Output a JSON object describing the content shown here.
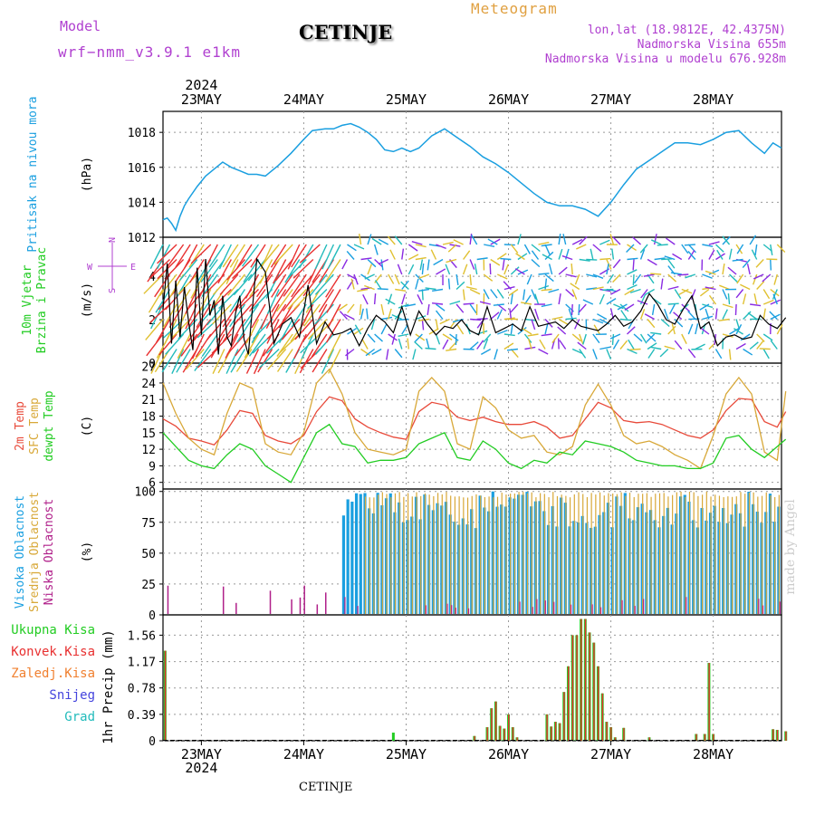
{
  "header": {
    "model_label": "Model",
    "model_name": "wrf−nmm_v3.9.1  e1km",
    "station": "CETINJE",
    "meteogram": "Meteogram",
    "lonlat": "lon,lat (18.9812E, 42.4375N)",
    "elevation": "Nadmorska Visina 655m",
    "model_elevation": "Nadmorska Visina u modelu 676.928m",
    "footer_station": "CETINJE",
    "watermark": "made by Angel"
  },
  "colors": {
    "pressure": "#1a9fe0",
    "wind_speed": "#000000",
    "gust": "#e83030",
    "t2m": "#e84a3a",
    "sfc": "#d8a838",
    "dewpt": "#22cc22",
    "high_cloud": "#1a9fe0",
    "mid_cloud": "#d8a838",
    "low_cloud": "#b0208a",
    "total_precip": "#22cc22",
    "convective": "#e83030",
    "frozen": "#f08030",
    "snow": "#4444dd",
    "graupel": "#22bbbb",
    "label_magenta": "#b040d0",
    "label_orange": "#e0a040"
  },
  "chart_data": {
    "type": "line",
    "time_axis": {
      "year_label": "2024",
      "day_labels": [
        "23MAY",
        "24MAY",
        "25MAY",
        "26MAY",
        "27MAY",
        "28MAY"
      ],
      "start": "2024-05-22 15:00",
      "end": "2024-05-28 16:00"
    },
    "panels": [
      {
        "id": "pressure",
        "ylabel_lines": [
          "Pritisak na nivou mora"
        ],
        "unit": "(hPa)",
        "yticks": [
          1012,
          1014,
          1016,
          1018
        ],
        "ylim": [
          1012,
          1019.2
        ],
        "series": [
          {
            "color_key": "pressure",
            "x": [
              0,
              1,
              2,
              3,
              4,
              5,
              6,
              8,
              10,
              12,
              14,
              16,
              18,
              20,
              22,
              24,
              27,
              30,
              33,
              35,
              38,
              40,
              42,
              44,
              46,
              48,
              50,
              52,
              54,
              56,
              58,
              60,
              63,
              66,
              69,
              72,
              75,
              78,
              81,
              84,
              87,
              90,
              93,
              96,
              99,
              102,
              105,
              108,
              111,
              114,
              117,
              120,
              123,
              126,
              129,
              132,
              135,
              138,
              141,
              143,
              145
            ],
            "y": [
              1013.0,
              1013.1,
              1012.8,
              1012.4,
              1013.2,
              1013.8,
              1014.2,
              1014.9,
              1015.5,
              1015.9,
              1016.3,
              1016.0,
              1015.8,
              1015.6,
              1015.6,
              1015.5,
              1016.1,
              1016.8,
              1017.6,
              1018.1,
              1018.2,
              1018.2,
              1018.4,
              1018.5,
              1018.3,
              1018.0,
              1017.6,
              1017.0,
              1016.9,
              1017.1,
              1016.9,
              1017.1,
              1017.8,
              1018.2,
              1017.7,
              1017.2,
              1016.6,
              1016.2,
              1015.7,
              1015.1,
              1014.5,
              1014.0,
              1013.8,
              1013.8,
              1013.6,
              1013.2,
              1014.0,
              1015.0,
              1015.9,
              1016.4,
              1016.9,
              1017.4,
              1017.4,
              1017.3,
              1017.6,
              1018.0,
              1018.1,
              1017.4,
              1016.8,
              1017.4,
              1017.1
            ]
          }
        ]
      },
      {
        "id": "wind",
        "ylabel_lines": [
          "10m Vjetar",
          "Brzina i Pravac"
        ],
        "unit": "(m/s)",
        "compass": {
          "n": "N",
          "s": "S",
          "w": "W",
          "e": "E"
        },
        "yticks": [
          0,
          2,
          4
        ],
        "ylim": [
          0,
          5.8
        ],
        "series": [
          {
            "color_key": "wind_speed",
            "x": [
              0,
              1,
              2,
              3,
              4,
              5,
              6,
              7,
              8,
              9,
              10,
              11,
              12,
              13,
              14,
              15,
              16,
              17,
              18,
              19,
              20,
              22,
              24,
              26,
              28,
              30,
              32,
              34,
              36,
              38,
              40,
              42,
              44,
              46,
              48,
              50,
              52,
              54,
              56,
              58,
              60,
              62,
              64,
              66,
              68,
              70,
              72,
              74,
              76,
              78,
              80,
              82,
              84,
              86,
              88,
              90,
              92,
              94,
              96,
              98,
              100,
              102,
              104,
              106,
              108,
              110,
              112,
              114,
              116,
              118,
              120,
              122,
              124,
              126,
              128,
              130,
              132,
              134,
              136,
              138,
              140,
              142,
              144,
              146
            ],
            "y": [
              2.5,
              4.6,
              0.9,
              3.8,
              1.2,
              3.5,
              1.9,
              0.6,
              4.4,
              1.3,
              4.8,
              2.2,
              2.9,
              0.4,
              3.1,
              1.2,
              0.8,
              2.3,
              3.1,
              1.1,
              0.4,
              4.8,
              4.2,
              0.9,
              1.8,
              2.1,
              1.2,
              3.6,
              0.9,
              1.9,
              1.3,
              1.4,
              1.6,
              0.8,
              1.6,
              2.2,
              1.9,
              1.4,
              2.6,
              1.3,
              2.4,
              1.8,
              1.3,
              1.7,
              1.6,
              2.0,
              1.5,
              1.3,
              2.6,
              1.4,
              1.6,
              1.8,
              1.5,
              2.6,
              1.7,
              1.8,
              1.9,
              1.6,
              2.0,
              1.7,
              1.6,
              1.5,
              1.8,
              2.2,
              1.7,
              1.9,
              2.4,
              3.2,
              2.7,
              2.0,
              1.8,
              2.5,
              3.1,
              1.6,
              1.9,
              0.8,
              1.2,
              1.3,
              1.1,
              1.2,
              2.2,
              1.8,
              1.6,
              2.1
            ]
          }
        ]
      },
      {
        "id": "temp",
        "ylabel_lines": [
          "2m Temp",
          "SFC Temp",
          "dewpt Temp"
        ],
        "unit": "(C)",
        "yticks": [
          6,
          9,
          12,
          15,
          18,
          21,
          24,
          27
        ],
        "ylim": [
          4.8,
          27.6
        ],
        "series": [
          {
            "color_key": "t2m",
            "x": [
              0,
              3,
              6,
              9,
              12,
              15,
              18,
              21,
              24,
              27,
              30,
              33,
              36,
              39,
              42,
              45,
              48,
              51,
              54,
              57,
              60,
              63,
              66,
              69,
              72,
              75,
              78,
              81,
              84,
              87,
              90,
              93,
              96,
              99,
              102,
              105,
              108,
              111,
              114,
              117,
              120,
              123,
              126,
              129,
              132,
              135,
              138,
              141,
              144,
              146
            ],
            "y": [
              17.5,
              16.2,
              14.0,
              13.5,
              12.8,
              15.5,
              19.0,
              18.5,
              14.5,
              13.5,
              13.0,
              14.5,
              18.8,
              21.5,
              20.8,
              17.5,
              16.0,
              15.0,
              14.2,
              13.8,
              18.8,
              20.5,
              20.0,
              17.8,
              17.2,
              17.8,
              17.0,
              16.5,
              16.5,
              17.0,
              16.0,
              14.0,
              14.5,
              17.5,
              20.5,
              19.5,
              17.2,
              16.8,
              17.0,
              16.5,
              15.5,
              14.5,
              14.0,
              15.5,
              19.0,
              21.2,
              21.0,
              17.0,
              16.0,
              18.8
            ]
          },
          {
            "color_key": "sfc",
            "x": [
              0,
              3,
              6,
              9,
              12,
              15,
              18,
              21,
              24,
              27,
              30,
              33,
              36,
              39,
              42,
              45,
              48,
              51,
              54,
              57,
              60,
              63,
              66,
              69,
              72,
              75,
              78,
              81,
              84,
              87,
              90,
              93,
              96,
              99,
              102,
              105,
              108,
              111,
              114,
              117,
              120,
              123,
              126,
              129,
              132,
              135,
              138,
              141,
              144,
              146
            ],
            "y": [
              24.0,
              18.5,
              14.0,
              12.0,
              11.0,
              18.5,
              24.0,
              23.0,
              13.0,
              11.5,
              11.0,
              15.0,
              24.0,
              26.5,
              22.0,
              15.0,
              12.0,
              11.5,
              11.0,
              12.0,
              22.5,
              25.0,
              22.5,
              13.0,
              12.0,
              21.5,
              19.5,
              15.5,
              14.0,
              14.5,
              11.5,
              11.0,
              12.5,
              20.0,
              23.8,
              20.0,
              14.5,
              13.0,
              13.5,
              12.5,
              11.0,
              10.0,
              8.5,
              14.5,
              22.0,
              25.0,
              22.0,
              11.5,
              10.0,
              22.5
            ]
          },
          {
            "color_key": "dewpt",
            "x": [
              0,
              3,
              6,
              9,
              12,
              15,
              18,
              21,
              24,
              27,
              30,
              33,
              36,
              39,
              42,
              45,
              48,
              51,
              54,
              57,
              60,
              63,
              66,
              69,
              72,
              75,
              78,
              81,
              84,
              87,
              90,
              93,
              96,
              99,
              102,
              105,
              108,
              111,
              114,
              117,
              120,
              123,
              126,
              129,
              132,
              135,
              138,
              141,
              144,
              146
            ],
            "y": [
              15.0,
              12.5,
              10.0,
              9.0,
              8.5,
              11.0,
              13.0,
              12.0,
              9.0,
              7.5,
              6.0,
              10.5,
              15.0,
              16.5,
              13.0,
              12.5,
              9.5,
              10.0,
              10.0,
              10.5,
              13.0,
              14.0,
              15.0,
              10.5,
              10.0,
              13.5,
              12.0,
              9.5,
              8.5,
              10.0,
              9.5,
              11.5,
              11.0,
              13.5,
              13.0,
              12.5,
              11.5,
              10.0,
              9.5,
              9.0,
              9.0,
              8.5,
              8.5,
              9.5,
              14.0,
              14.5,
              12.0,
              10.5,
              12.5,
              13.8
            ]
          }
        ]
      },
      {
        "id": "cloud",
        "ylabel_lines": [
          "Visoka Oblacnost",
          "Srednja Oblacnost",
          "Niska Oblacnost"
        ],
        "unit": "(%)",
        "yticks": [
          0,
          25,
          50,
          75,
          100
        ],
        "ylim": [
          0,
          102
        ]
      },
      {
        "id": "precip",
        "ylabel_lines": [
          "1hr Precip (mm)"
        ],
        "legend": [
          "Ukupna Kisa",
          "Konvek.Kisa",
          "Zaledj.Kisa",
          "Snijeg",
          "Grad"
        ],
        "yticks": [
          0,
          0.39,
          0.78,
          1.17,
          1.56
        ],
        "ylim": [
          0,
          1.86
        ],
        "bars": [
          {
            "x": 0.5,
            "total": 1.33,
            "conv": 1.33
          },
          {
            "x": 54,
            "total": 0.12,
            "conv": 0.0
          },
          {
            "x": 73,
            "total": 0.07,
            "conv": 0.07
          },
          {
            "x": 76,
            "total": 0.2,
            "conv": 0.2
          },
          {
            "x": 77,
            "total": 0.48,
            "conv": 0.48
          },
          {
            "x": 78,
            "total": 0.58,
            "conv": 0.58
          },
          {
            "x": 79,
            "total": 0.22,
            "conv": 0.22
          },
          {
            "x": 80,
            "total": 0.18,
            "conv": 0.18
          },
          {
            "x": 81,
            "total": 0.39,
            "conv": 0.39
          },
          {
            "x": 82,
            "total": 0.2,
            "conv": 0.2
          },
          {
            "x": 83,
            "total": 0.05,
            "conv": 0.05
          },
          {
            "x": 90,
            "total": 0.39,
            "conv": 0.39
          },
          {
            "x": 91,
            "total": 0.21,
            "conv": 0.21
          },
          {
            "x": 92,
            "total": 0.28,
            "conv": 0.28
          },
          {
            "x": 93,
            "total": 0.26,
            "conv": 0.26
          },
          {
            "x": 94,
            "total": 0.72,
            "conv": 0.72
          },
          {
            "x": 95,
            "total": 1.1,
            "conv": 1.1
          },
          {
            "x": 96,
            "total": 1.56,
            "conv": 1.56
          },
          {
            "x": 97,
            "total": 1.56,
            "conv": 1.56
          },
          {
            "x": 98,
            "total": 1.8,
            "conv": 1.8
          },
          {
            "x": 99,
            "total": 1.8,
            "conv": 1.8
          },
          {
            "x": 100,
            "total": 1.6,
            "conv": 1.6
          },
          {
            "x": 101,
            "total": 1.45,
            "conv": 1.45
          },
          {
            "x": 102,
            "total": 1.1,
            "conv": 1.1
          },
          {
            "x": 103,
            "total": 0.7,
            "conv": 0.7
          },
          {
            "x": 104,
            "total": 0.28,
            "conv": 0.28
          },
          {
            "x": 105,
            "total": 0.2,
            "conv": 0.2
          },
          {
            "x": 106,
            "total": 0.05,
            "conv": 0.05
          },
          {
            "x": 108,
            "total": 0.19,
            "conv": 0.19
          },
          {
            "x": 114,
            "total": 0.05,
            "conv": 0.05
          },
          {
            "x": 125,
            "total": 0.1,
            "conv": 0.1
          },
          {
            "x": 127,
            "total": 0.1,
            "conv": 0.1
          },
          {
            "x": 128,
            "total": 1.15,
            "conv": 1.15
          },
          {
            "x": 129,
            "total": 0.1,
            "conv": 0.1
          },
          {
            "x": 143,
            "total": 0.17,
            "conv": 0.17
          },
          {
            "x": 144,
            "total": 0.16,
            "conv": 0.16
          },
          {
            "x": 146,
            "total": 0.14,
            "conv": 0.14
          }
        ]
      }
    ]
  }
}
